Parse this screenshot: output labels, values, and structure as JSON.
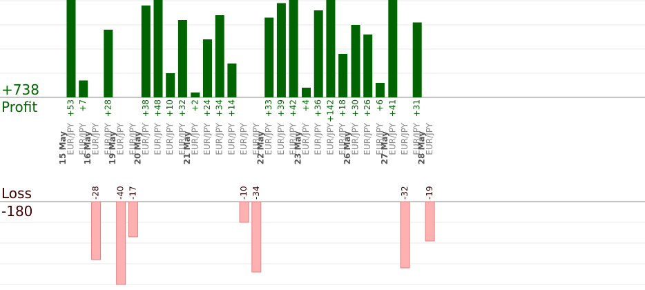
{
  "summary": {
    "profit_total": "+738",
    "profit_label": "Profit",
    "loss_label": "Loss",
    "loss_total": "-180"
  },
  "colors": {
    "profit": "#006400",
    "loss": "#ffb0b0",
    "loss_text": "#3a0000",
    "grid": "#e8e8e8",
    "axis": "#888888",
    "date": "#555555",
    "pair": "#888888"
  },
  "chart_data": {
    "type": "bar",
    "ylim_profit": [
      0,
      40
    ],
    "ylim_loss": [
      -40,
      0
    ],
    "dates": [
      "15 May",
      "16 May",
      "19 May",
      "20 May",
      "21 May",
      "22 May",
      "23 May",
      "26 May",
      "27 May",
      "28 May"
    ],
    "trades": [
      {
        "date": "15 May",
        "pair": "EUR/JPY",
        "value": 53,
        "label": "+53"
      },
      {
        "date": "15 May",
        "pair": "EUR/JPY",
        "value": 7,
        "label": "+7"
      },
      {
        "date": "16 May",
        "pair": "EUR/JPY",
        "value": -28,
        "label": "-28"
      },
      {
        "date": "16 May",
        "pair": "EUR/JPY",
        "value": 28,
        "label": "+28"
      },
      {
        "date": "19 May",
        "pair": "EUR/JPY",
        "value": -40,
        "label": "-40"
      },
      {
        "date": "19 May",
        "pair": "EUR/JPY",
        "value": -17,
        "label": "-17"
      },
      {
        "date": "20 May",
        "pair": "EUR/JPY",
        "value": 38,
        "label": "+38"
      },
      {
        "date": "20 May",
        "pair": "EUR/JPY",
        "value": 48,
        "label": "+48"
      },
      {
        "date": "20 May",
        "pair": "EUR/JPY",
        "value": 10,
        "label": "+10"
      },
      {
        "date": "20 May",
        "pair": "EUR/JPY",
        "value": 32,
        "label": "+32"
      },
      {
        "date": "21 May",
        "pair": "EUR/JPY",
        "value": 2,
        "label": "+2"
      },
      {
        "date": "21 May",
        "pair": "EUR/JPY",
        "value": 24,
        "label": "+24"
      },
      {
        "date": "21 May",
        "pair": "EUR/JPY",
        "value": 34,
        "label": "+34"
      },
      {
        "date": "21 May",
        "pair": "EUR/JPY",
        "value": 14,
        "label": "+14"
      },
      {
        "date": "21 May",
        "pair": "EUR/JPY",
        "value": -10,
        "label": "-10"
      },
      {
        "date": "21 May",
        "pair": "EUR/JPY",
        "value": -34,
        "label": "-34"
      },
      {
        "date": "22 May",
        "pair": "EUR/JPY",
        "value": 33,
        "label": "+33"
      },
      {
        "date": "22 May",
        "pair": "EUR/JPY",
        "value": 39,
        "label": "+39"
      },
      {
        "date": "22 May",
        "pair": "EUR/JPY",
        "value": 42,
        "label": "+42"
      },
      {
        "date": "23 May",
        "pair": "EUR/JPY",
        "value": 4,
        "label": "+4"
      },
      {
        "date": "23 May",
        "pair": "EUR/JPY",
        "value": 36,
        "label": "+36"
      },
      {
        "date": "23 May",
        "pair": "EUR/JPY",
        "value": 142,
        "label": "+142"
      },
      {
        "date": "23 May",
        "pair": "EUR/JPY",
        "value": 18,
        "label": "+18"
      },
      {
        "date": "26 May",
        "pair": "EUR/JPY",
        "value": 30,
        "label": "+30"
      },
      {
        "date": "26 May",
        "pair": "EUR/JPY",
        "value": 26,
        "label": "+26"
      },
      {
        "date": "26 May",
        "pair": "EUR/JPY",
        "value": 6,
        "label": "+6"
      },
      {
        "date": "27 May",
        "pair": "EUR/JPY",
        "value": 41,
        "label": "+41"
      },
      {
        "date": "27 May",
        "pair": "EUR/JPY",
        "value": -32,
        "label": "-32"
      },
      {
        "date": "27 May",
        "pair": "EUR/JPY",
        "value": 31,
        "label": "+31"
      },
      {
        "date": "28 May",
        "pair": "EUR/JPY",
        "value": -19,
        "label": "-19"
      }
    ]
  }
}
